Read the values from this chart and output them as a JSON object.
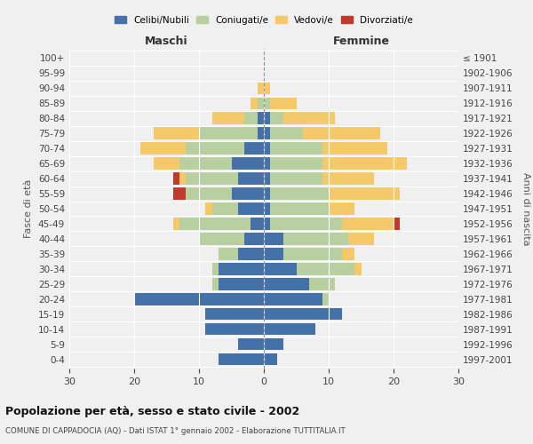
{
  "age_groups": [
    "0-4",
    "5-9",
    "10-14",
    "15-19",
    "20-24",
    "25-29",
    "30-34",
    "35-39",
    "40-44",
    "45-49",
    "50-54",
    "55-59",
    "60-64",
    "65-69",
    "70-74",
    "75-79",
    "80-84",
    "85-89",
    "90-94",
    "95-99",
    "100+"
  ],
  "birth_years": [
    "1997-2001",
    "1992-1996",
    "1987-1991",
    "1982-1986",
    "1977-1981",
    "1972-1976",
    "1967-1971",
    "1962-1966",
    "1957-1961",
    "1952-1956",
    "1947-1951",
    "1942-1946",
    "1937-1941",
    "1932-1936",
    "1927-1931",
    "1922-1926",
    "1917-1921",
    "1912-1916",
    "1907-1911",
    "1902-1906",
    "≤ 1901"
  ],
  "maschi": {
    "celibi": [
      7,
      4,
      9,
      9,
      20,
      7,
      7,
      4,
      3,
      2,
      4,
      5,
      4,
      5,
      3,
      1,
      1,
      0,
      0,
      0,
      0
    ],
    "coniugati": [
      0,
      0,
      0,
      0,
      0,
      1,
      1,
      3,
      7,
      11,
      4,
      7,
      8,
      8,
      9,
      9,
      2,
      1,
      0,
      0,
      0
    ],
    "vedovi": [
      0,
      0,
      0,
      0,
      0,
      0,
      0,
      0,
      0,
      1,
      1,
      0,
      1,
      4,
      7,
      7,
      5,
      1,
      1,
      0,
      0
    ],
    "divorziati": [
      0,
      0,
      0,
      0,
      0,
      0,
      0,
      0,
      0,
      0,
      0,
      2,
      1,
      0,
      0,
      0,
      0,
      0,
      0,
      0,
      0
    ]
  },
  "femmine": {
    "nubili": [
      2,
      3,
      8,
      12,
      9,
      7,
      5,
      3,
      3,
      1,
      1,
      1,
      1,
      1,
      1,
      1,
      1,
      0,
      0,
      0,
      0
    ],
    "coniugate": [
      0,
      0,
      0,
      0,
      1,
      4,
      9,
      9,
      10,
      11,
      9,
      9,
      8,
      8,
      8,
      5,
      2,
      1,
      0,
      0,
      0
    ],
    "vedove": [
      0,
      0,
      0,
      0,
      0,
      0,
      1,
      2,
      4,
      8,
      4,
      11,
      8,
      13,
      10,
      12,
      8,
      4,
      1,
      0,
      0
    ],
    "divorziate": [
      0,
      0,
      0,
      0,
      0,
      0,
      0,
      0,
      0,
      1,
      0,
      0,
      0,
      0,
      0,
      0,
      0,
      0,
      0,
      0,
      0
    ]
  },
  "colors": {
    "celibi_nubili": "#4472a8",
    "coniugati": "#b8cfa0",
    "vedovi": "#f5c96a",
    "divorziati": "#c0392b"
  },
  "title": "Popolazione per età, sesso e stato civile - 2002",
  "subtitle": "COMUNE DI CAPPADOCIA (AQ) - Dati ISTAT 1° gennaio 2002 - Elaborazione TUTTITALIA.IT",
  "xlabel_left": "Maschi",
  "xlabel_right": "Femmine",
  "ylabel_left": "Fasce di età",
  "ylabel_right": "Anni di nascita",
  "xlim": 30,
  "background_color": "#f0f0f0"
}
